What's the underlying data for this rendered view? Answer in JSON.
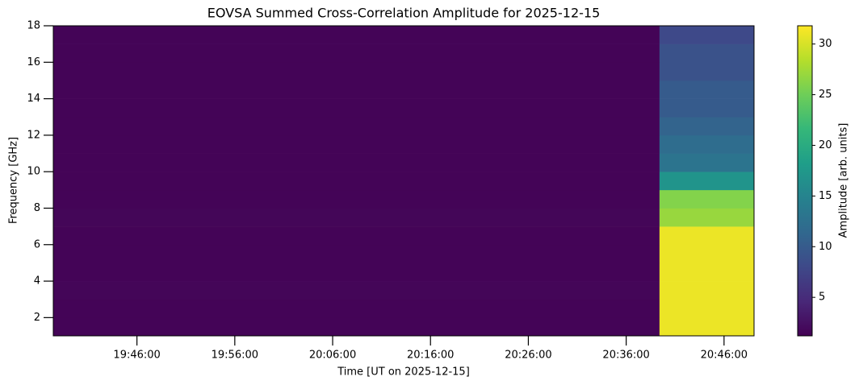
{
  "chart_data": {
    "type": "heatmap",
    "title": "EOVSA Summed Cross-Correlation Amplitude for 2025-12-15",
    "x_label": "Time [UT on 2025-12-15]",
    "y_label": "Frequency [GHz]",
    "colorbar_label": "Amplitude [arb. units]",
    "colormap": "viridis",
    "x_edges": [
      "19:37:27",
      "20:39:24",
      "20:49:04"
    ],
    "y_edges": [
      1,
      2,
      3,
      4,
      5,
      6,
      7,
      8,
      9,
      10,
      11,
      12,
      13,
      14,
      15,
      16,
      17,
      18
    ],
    "values": [
      [
        1.5,
        31
      ],
      [
        1.5,
        31
      ],
      [
        1.6,
        31
      ],
      [
        1.5,
        31
      ],
      [
        1.5,
        31
      ],
      [
        1.5,
        31
      ],
      [
        1.6,
        27
      ],
      [
        1.5,
        26
      ],
      [
        1.5,
        17
      ],
      [
        1.5,
        13
      ],
      [
        1.5,
        12
      ],
      [
        1.5,
        11
      ],
      [
        1.5,
        10
      ],
      [
        1.5,
        10
      ],
      [
        1.5,
        9
      ],
      [
        1.5,
        9
      ],
      [
        1.5,
        8
      ]
    ],
    "xlim": [
      "19:37:27",
      "20:49:04"
    ],
    "xticks": [
      "19:46:00",
      "19:56:00",
      "20:06:00",
      "20:16:00",
      "20:26:00",
      "20:36:00",
      "20:46:00"
    ],
    "ylim": [
      1,
      18
    ],
    "yticks": [
      2,
      4,
      6,
      8,
      10,
      12,
      14,
      16,
      18
    ],
    "clim": [
      1.2,
      31.8
    ],
    "cticks": [
      5,
      10,
      15,
      20,
      25,
      30
    ]
  }
}
